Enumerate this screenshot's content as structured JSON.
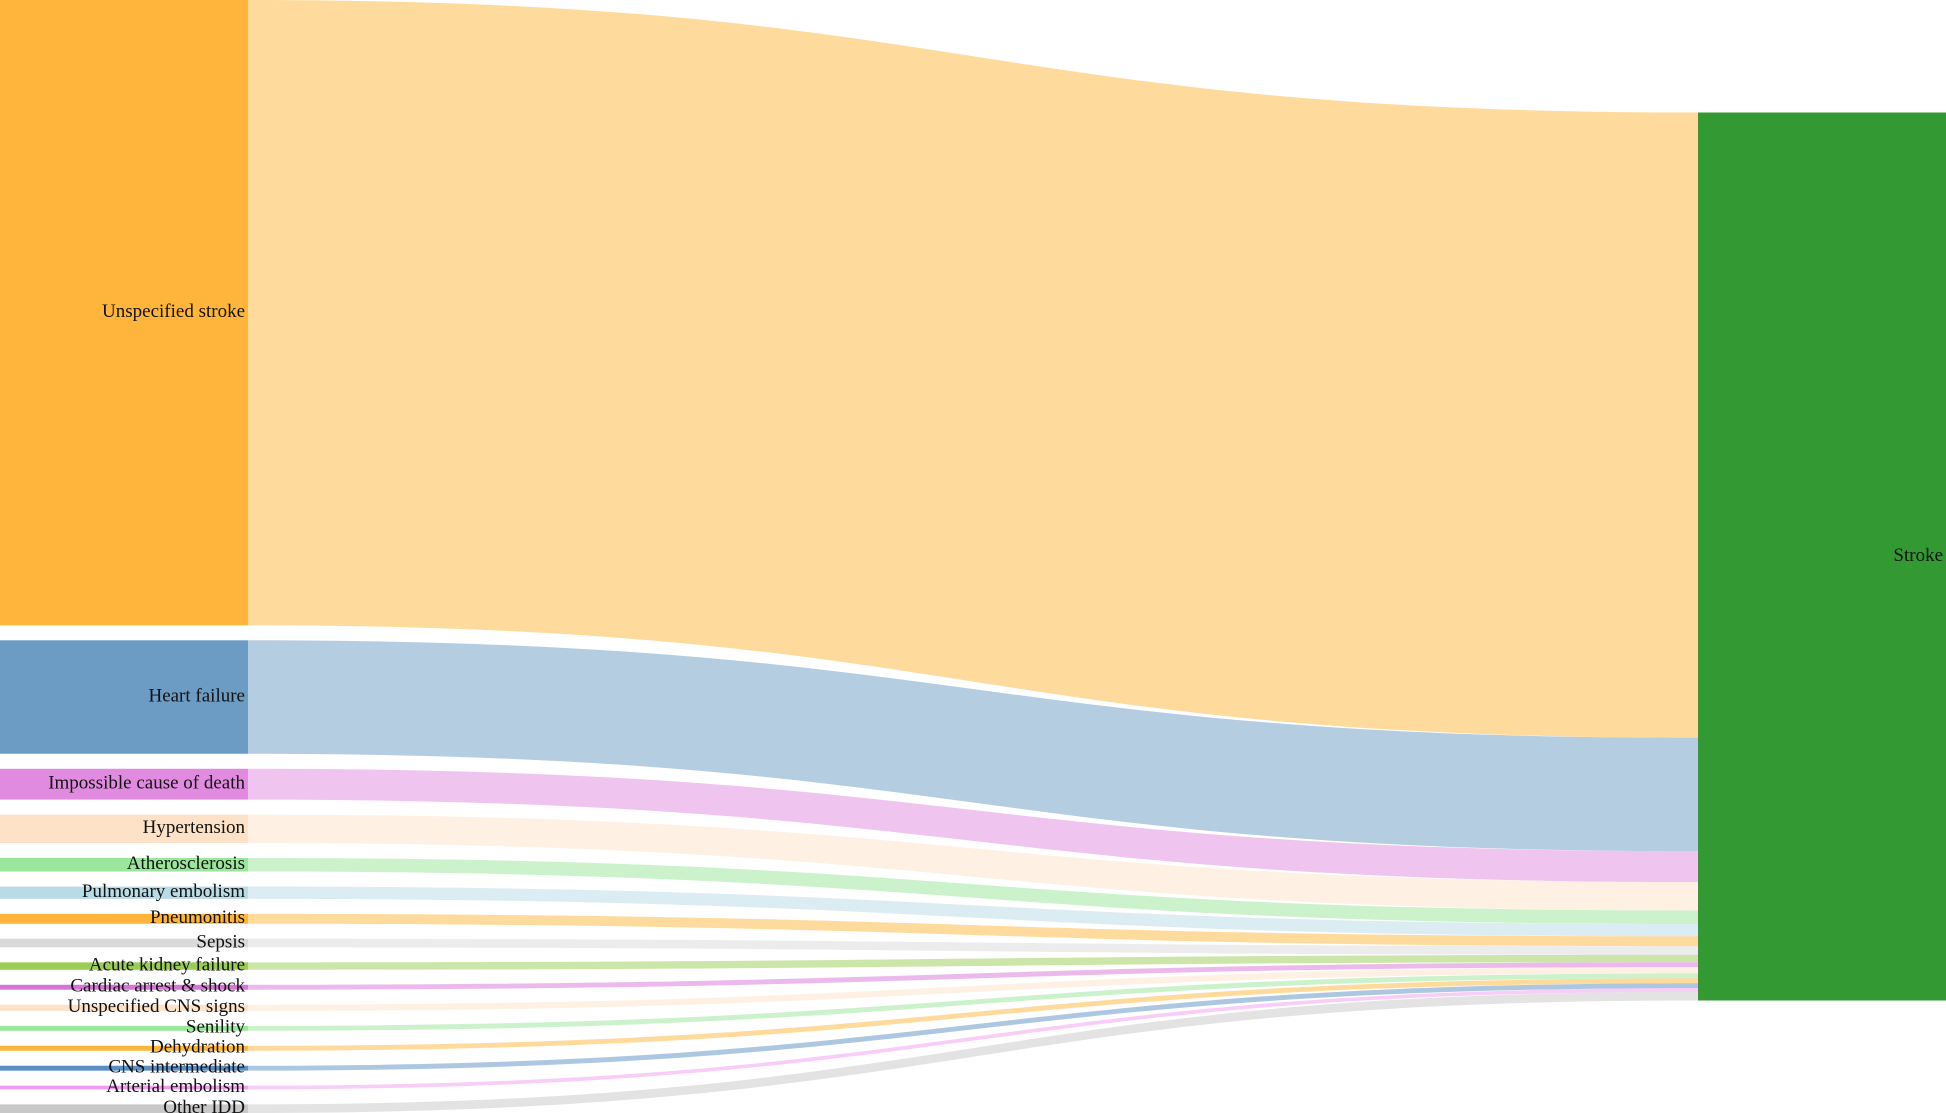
{
  "chart_data": {
    "type": "sankey",
    "target": {
      "name": "Stroke",
      "color": "#339933"
    },
    "sources": [
      {
        "name": "Unspecified stroke",
        "color": "#ffb53b",
        "value": 507
      },
      {
        "name": "Heart failure",
        "color": "#6c9bc4",
        "value": 92
      },
      {
        "name": "Impossible cause of death",
        "color": "#e08ae0",
        "value": 25
      },
      {
        "name": "Hypertension",
        "color": "#fde2c8",
        "value": 23
      },
      {
        "name": "Atherosclerosis",
        "color": "#9ae69a",
        "value": 11
      },
      {
        "name": "Pulmonary embolism",
        "color": "#b8dbe6",
        "value": 10
      },
      {
        "name": "Pneumonitis",
        "color": "#ffb53b",
        "value": 8
      },
      {
        "name": "Sepsis",
        "color": "#d9d9d9",
        "value": 7
      },
      {
        "name": "Acute kidney failure",
        "color": "#9acd55",
        "value": 6
      },
      {
        "name": "Cardiac arrest & shock",
        "color": "#d873d8",
        "value": 4
      },
      {
        "name": "Unspecified CNS signs",
        "color": "#fde2c8",
        "value": 5
      },
      {
        "name": "Senility",
        "color": "#9ae69a",
        "value": 4
      },
      {
        "name": "Dehydration",
        "color": "#ffb53b",
        "value": 4
      },
      {
        "name": "CNS intermediate",
        "color": "#5b8fc4",
        "value": 4
      },
      {
        "name": "Arterial embolism",
        "color": "#f19cf0",
        "value": 3
      },
      {
        "name": "Other IDD",
        "color": "#c8c8c8",
        "value": 7
      }
    ]
  }
}
